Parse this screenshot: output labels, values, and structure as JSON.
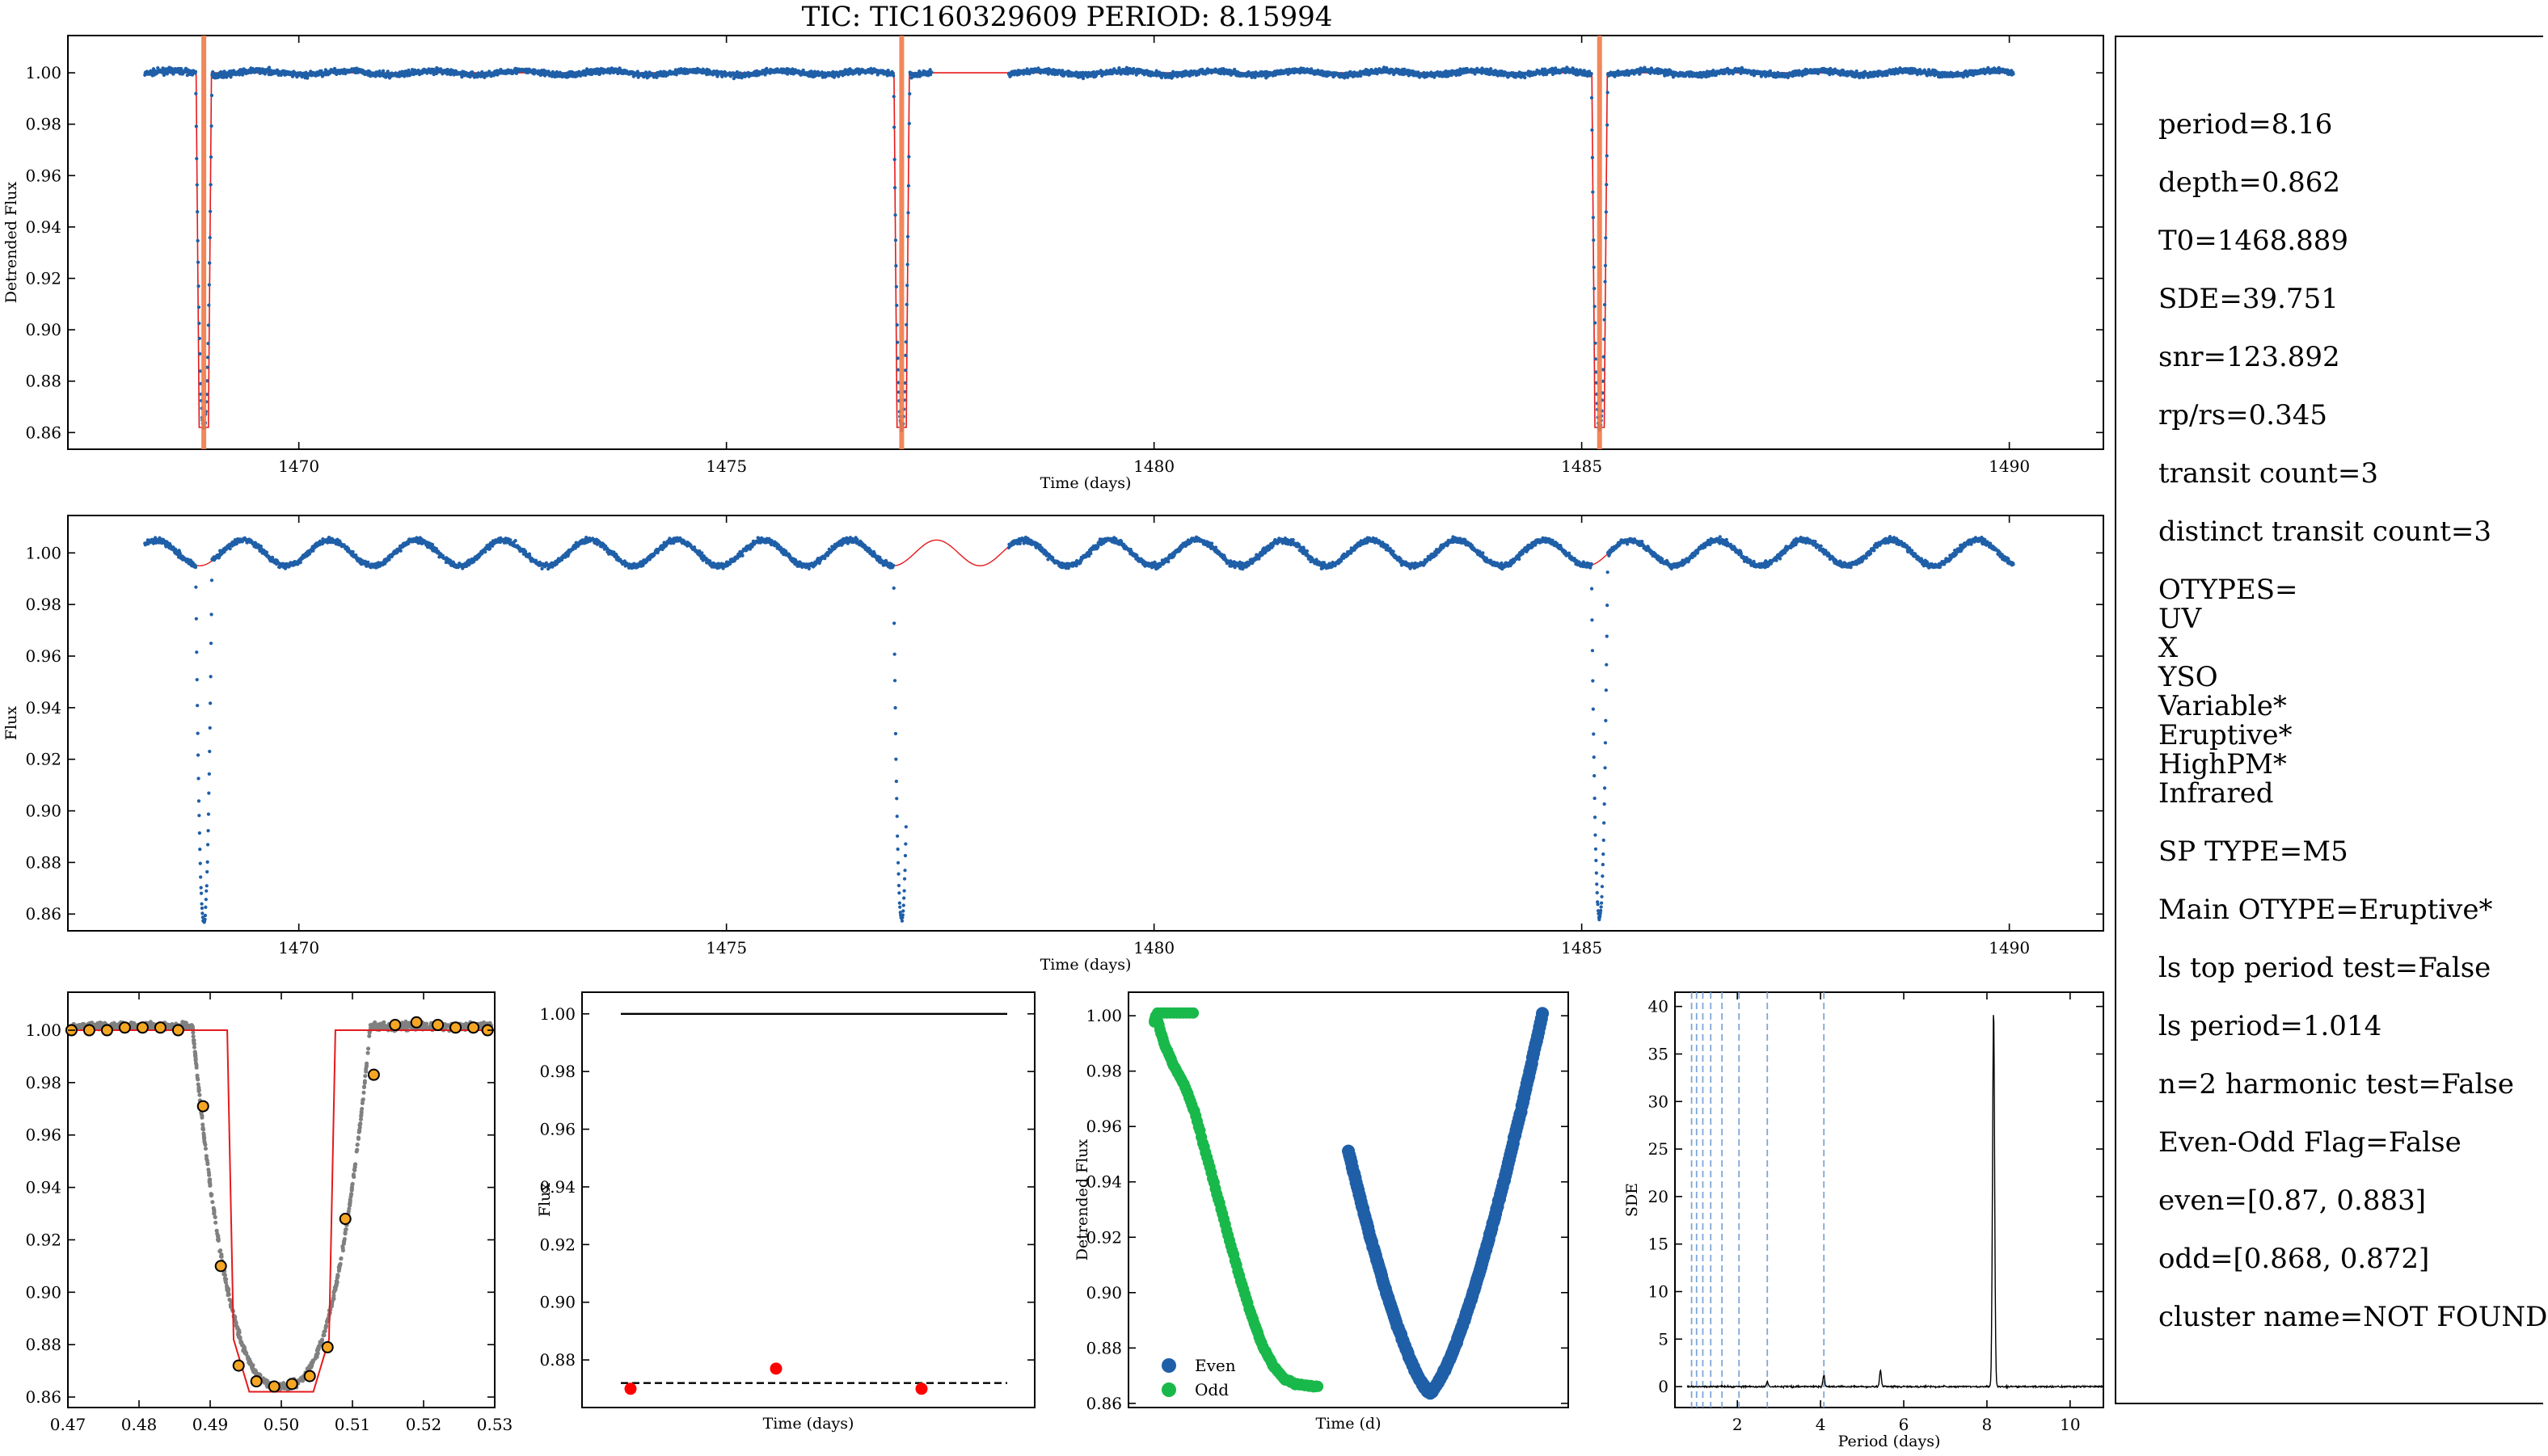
{
  "title": "TIC: TIC160329609 PERIOD: 8.15994",
  "info_lines": [
    "period=8.16",
    "",
    "depth=0.862",
    "",
    "T0=1468.889",
    "",
    "SDE=39.751",
    "",
    "snr=123.892",
    "",
    "rp/rs=0.345",
    "",
    "transit count=3",
    "",
    "distinct transit count=3",
    "",
    "OTYPES=",
    "UV",
    "X",
    "YSO",
    "Variable*",
    "Eruptive*",
    "HighPM*",
    "Infrared",
    "",
    "SP TYPE=M5",
    "",
    "Main OTYPE=Eruptive*",
    "",
    "ls top period test=False",
    "",
    "ls period=1.014",
    "",
    "n=2 harmonic test=False",
    "",
    "Even-Odd Flag=False",
    "",
    "even=[0.87, 0.883]",
    "",
    "odd=[0.868, 0.872]",
    "",
    "cluster name=NOT FOUND"
  ],
  "colors": {
    "data": "#1f5fa8",
    "model_top": "#f07a48",
    "model": "#e41a1c",
    "fold_bin": "#f5a623",
    "fold_raw": "#808080",
    "odd": "#19b84a",
    "even": "#1f5fa8",
    "peak_marker": "#ff0000",
    "harmonic": "#7fa6d6"
  },
  "chart_data": [
    {
      "id": "detrended",
      "type": "scatter",
      "xlabel": "Time (days)",
      "ylabel": "Detrended Flux",
      "xlim": [
        1467.3,
        1491.1
      ],
      "ylim": [
        0.8535,
        1.0145
      ],
      "xticks": [
        1470,
        1475,
        1480,
        1485,
        1490
      ],
      "yticks": [
        0.86,
        0.88,
        0.9,
        0.92,
        0.94,
        0.96,
        0.98,
        1.0
      ],
      "data_range": [
        1468.2,
        1490.05
      ],
      "gap": [
        1477.4,
        1478.3
      ],
      "transit_times": [
        1468.889,
        1477.049,
        1485.209
      ],
      "depth": 0.862,
      "transit_half_width": 0.09,
      "model_line": "flat 1.00 with box transits",
      "vertical_markers": [
        1468.889,
        1477.049,
        1485.209
      ]
    },
    {
      "id": "raw",
      "type": "scatter",
      "xlabel": "Time (days)",
      "ylabel": "Flux",
      "xlim": [
        1467.3,
        1491.1
      ],
      "ylim": [
        0.8535,
        1.0145
      ],
      "xticks": [
        1470,
        1475,
        1480,
        1485,
        1490
      ],
      "yticks": [
        0.86,
        0.88,
        0.9,
        0.92,
        0.94,
        0.96,
        0.98,
        1.0
      ],
      "data_range": [
        1468.2,
        1490.05
      ],
      "gap": [
        1477.1,
        1478.3
      ],
      "variability_period_days": 1.014,
      "variability_amplitude": 0.005,
      "transit_times": [
        1468.889,
        1477.049,
        1485.209
      ]
    },
    {
      "id": "folded",
      "type": "scatter",
      "xlim": [
        0.47,
        0.53
      ],
      "ylim": [
        0.856,
        1.0145
      ],
      "xticks": [
        0.47,
        0.48,
        0.49,
        0.5,
        0.51,
        0.52,
        0.53
      ],
      "yticks": [
        0.86,
        0.88,
        0.9,
        0.92,
        0.94,
        0.96,
        0.98,
        1.0
      ],
      "binned": [
        [
          0.4705,
          1.0
        ],
        [
          0.473,
          1.0
        ],
        [
          0.4755,
          1.0
        ],
        [
          0.478,
          1.001
        ],
        [
          0.4805,
          1.001
        ],
        [
          0.483,
          1.001
        ],
        [
          0.4855,
          1.0
        ],
        [
          0.489,
          0.971
        ],
        [
          0.4915,
          0.91
        ],
        [
          0.494,
          0.872
        ],
        [
          0.4965,
          0.866
        ],
        [
          0.499,
          0.864
        ],
        [
          0.5015,
          0.865
        ],
        [
          0.504,
          0.868
        ],
        [
          0.5065,
          0.879
        ],
        [
          0.509,
          0.928
        ],
        [
          0.513,
          0.983
        ],
        [
          0.516,
          1.002
        ],
        [
          0.519,
          1.003
        ],
        [
          0.522,
          1.002
        ],
        [
          0.5245,
          1.001
        ],
        [
          0.527,
          1.001
        ],
        [
          0.529,
          1.0
        ]
      ],
      "model_box": [
        0.4925,
        0.5075,
        0.862
      ]
    },
    {
      "id": "transit-depths",
      "type": "scatter",
      "xlabel": "Time (days)",
      "ylabel": "Flux",
      "ylim": [
        0.8635,
        1.0075
      ],
      "yticks": [
        0.88,
        0.9,
        0.92,
        0.94,
        0.96,
        0.98,
        1.0
      ],
      "points": [
        0.87,
        0.877,
        0.87
      ],
      "solid_line": 1.0,
      "dashed_line": 0.872
    },
    {
      "id": "even-odd",
      "type": "scatter",
      "xlabel": "Time (d)",
      "ylabel": "Detrended Flux",
      "ylim": [
        0.8585,
        1.0085
      ],
      "yticks": [
        0.86,
        0.88,
        0.9,
        0.92,
        0.94,
        0.96,
        0.98,
        1.0
      ],
      "legend": [
        "Even",
        "Odd"
      ],
      "legend_position": "lower-left",
      "even_min": 0.864,
      "odd_min": 0.866
    },
    {
      "id": "periodogram",
      "type": "line",
      "xlabel": "Period (days)",
      "ylabel": "SDE",
      "xlim": [
        0.5,
        10.8
      ],
      "ylim": [
        -2.2,
        41.5
      ],
      "xticks": [
        2,
        4,
        6,
        8,
        10
      ],
      "yticks": [
        0,
        5,
        10,
        15,
        20,
        25,
        30,
        35,
        40
      ],
      "peak_period": 8.16,
      "peak_sde": 39.751,
      "harmonics": [
        0.9,
        1.02,
        1.17,
        1.36,
        1.63,
        2.04,
        2.72,
        4.08
      ],
      "secondary_peaks": [
        [
          4.08,
          1.2
        ],
        [
          5.44,
          1.7
        ],
        [
          2.72,
          0.5
        ]
      ]
    }
  ]
}
